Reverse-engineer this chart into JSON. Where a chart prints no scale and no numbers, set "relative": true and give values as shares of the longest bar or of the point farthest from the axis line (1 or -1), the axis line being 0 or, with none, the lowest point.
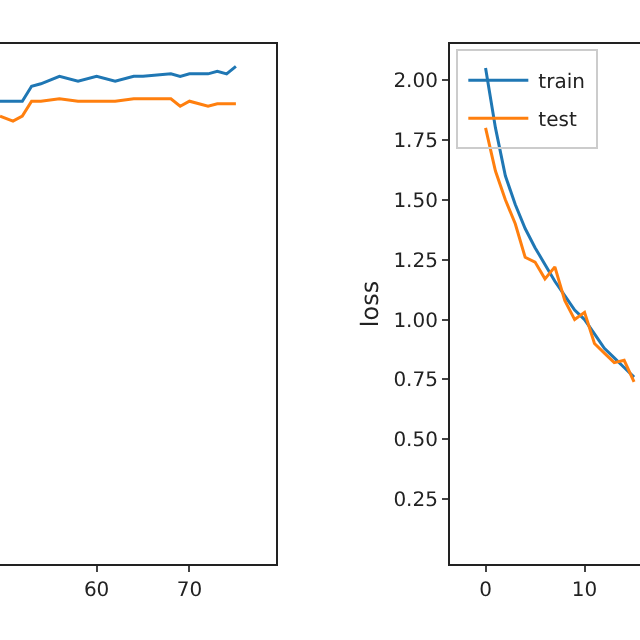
{
  "chart_data": [
    {
      "type": "line",
      "relative": true,
      "x": [
        49.6,
        51,
        52,
        53,
        54,
        56,
        58,
        60,
        62,
        64,
        65,
        68,
        69,
        70,
        72,
        73,
        74,
        75
      ],
      "xlim": [
        49.6,
        79.3
      ],
      "xticks": [
        60,
        70
      ],
      "tick_labels": "x",
      "legend": false,
      "series": [
        {
          "color": "#1f77b4",
          "values": [
            0.93,
            0.93,
            0.93,
            0.96,
            0.965,
            0.98,
            0.97,
            0.98,
            0.97,
            0.98,
            0.98,
            0.985,
            0.98,
            0.985,
            0.985,
            0.99,
            0.985,
            1.0
          ]
        },
        {
          "color": "#ff7f0e",
          "values": [
            0.9,
            0.89,
            0.9,
            0.93,
            0.93,
            0.935,
            0.93,
            0.93,
            0.93,
            0.935,
            0.935,
            0.935,
            0.92,
            0.93,
            0.92,
            0.925,
            0.925,
            0.925
          ]
        }
      ]
    },
    {
      "type": "line",
      "x": [
        0,
        1,
        2,
        3,
        4,
        5,
        6,
        7,
        8,
        9,
        10,
        11,
        12,
        13,
        14,
        15
      ],
      "xlim": [
        -3.6,
        15.6
      ],
      "xticks": [
        0,
        10
      ],
      "ylim": [
        -0.02,
        2.15
      ],
      "yticks": [
        0.25,
        {
          "value": 0.5,
          "label": "0.50"
        },
        0.75,
        {
          "value": 1,
          "label": "1.00"
        },
        1.25,
        {
          "value": 1.5,
          "label": "1.50"
        },
        1.75,
        {
          "value": 2,
          "label": "2.00"
        }
      ],
      "ylabel": "loss",
      "legend": "top left",
      "series": [
        {
          "name": "train",
          "color": "#1f77b4",
          "values": [
            2.05,
            1.8,
            1.6,
            1.48,
            1.38,
            1.3,
            1.23,
            1.16,
            1.1,
            1.04,
            1.0,
            0.94,
            0.88,
            0.84,
            0.8,
            0.76
          ]
        },
        {
          "name": "test",
          "color": "#ff7f0e",
          "values": [
            1.8,
            1.62,
            1.5,
            1.4,
            1.26,
            1.24,
            1.17,
            1.22,
            1.08,
            1.0,
            1.03,
            0.9,
            0.86,
            0.82,
            0.83,
            0.74
          ]
        }
      ]
    }
  ]
}
